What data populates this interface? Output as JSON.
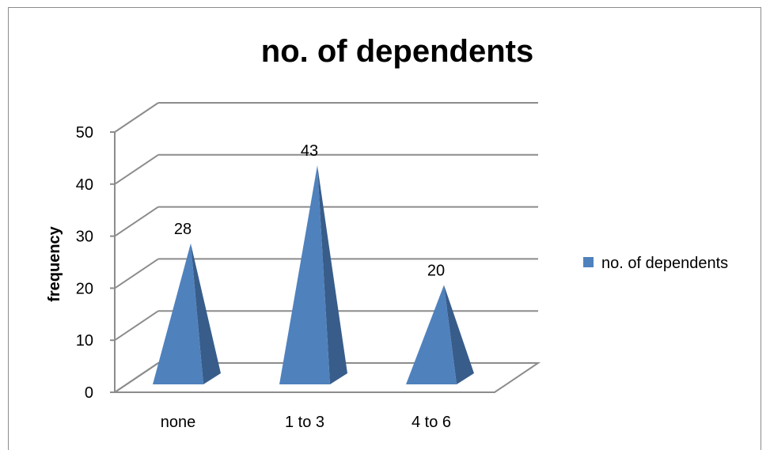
{
  "chart_data": {
    "type": "bar",
    "bar_shape": "pyramid-3d",
    "title": "no. of dependents",
    "xlabel": "",
    "ylabel": "frequency",
    "categories": [
      "none",
      "1 to 3",
      "4 to 6"
    ],
    "series": [
      {
        "name": "no. of dependents",
        "values": [
          28,
          43,
          20
        ]
      }
    ],
    "ylim": [
      0,
      50
    ],
    "yticks": [
      "0",
      "10",
      "20",
      "30",
      "40",
      "50"
    ],
    "data_labels": [
      "28",
      "43",
      "20"
    ],
    "grid": true,
    "legend_position": "right",
    "colors": {
      "front": "#4f81bd",
      "side": "#385d8a",
      "grid": "#8c8c8c"
    }
  }
}
